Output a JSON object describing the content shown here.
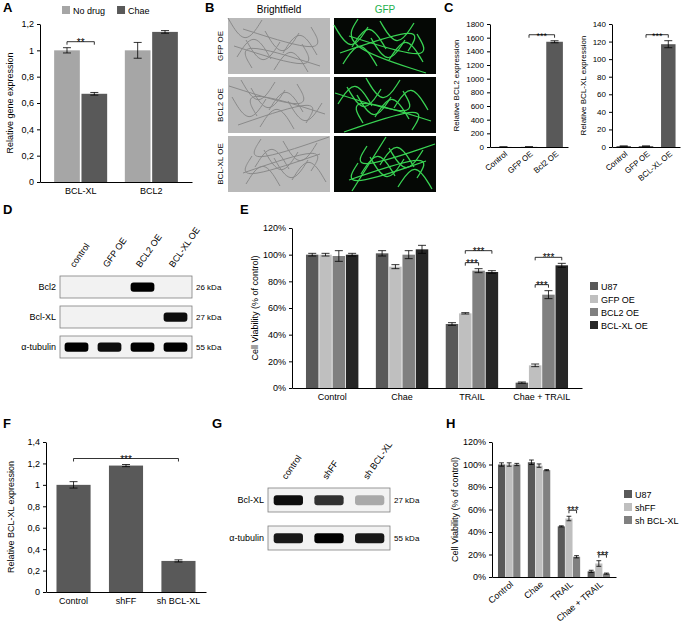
{
  "chart_data": [
    {
      "type": "bar",
      "ylabel": "Relative gene expression",
      "legend": "top",
      "categories": [
        "BCL-XL",
        "BCL2"
      ],
      "series": [
        {
          "name": "No drug",
          "color": "#a6a6a6",
          "values": [
            1.0,
            1.0
          ],
          "errors": [
            0.02,
            0.06
          ]
        },
        {
          "name": "Chae",
          "color": "#595959",
          "values": [
            0.67,
            1.14
          ],
          "errors": [
            0.01,
            0.01
          ]
        }
      ],
      "ylim": [
        0,
        1.2
      ],
      "yticks": [
        0,
        {
          "value": 0.2,
          "label": "0,2"
        },
        {
          "value": 0.4,
          "label": "0,4"
        },
        {
          "value": 0.6,
          "label": "0,6"
        },
        {
          "value": 0.8,
          "label": "0,8"
        },
        1,
        {
          "value": 1.2,
          "label": "1,2"
        }
      ],
      "significance": [
        {
          "label": "**",
          "category": 0,
          "series": [
            0,
            1
          ]
        }
      ]
    },
    {
      "type": "bar",
      "ylabel": "Relative BCL2 expression",
      "categories": [
        "Control",
        "GFP OE",
        "Bcl2 OE"
      ],
      "values": [
        1,
        2,
        1540
      ],
      "errors": [
        0,
        0,
        15
      ],
      "color": "#595959",
      "ylim": [
        0,
        1800
      ],
      "yticks": [
        0,
        200,
        400,
        600,
        800,
        1000,
        1200,
        1400,
        1600,
        1800
      ],
      "significance": [
        {
          "label": "***",
          "categories": [
            1,
            2
          ]
        }
      ]
    },
    {
      "type": "bar",
      "ylabel": "Relative BCL-XL expression",
      "categories": [
        "Control",
        "GFP OE",
        "BCL-XL OE"
      ],
      "values": [
        1,
        1,
        117
      ],
      "errors": [
        0,
        0,
        4
      ],
      "color": "#595959",
      "ylim": [
        0,
        140
      ],
      "yticks": [
        0,
        20,
        40,
        60,
        80,
        100,
        120,
        140
      ],
      "significance": [
        {
          "label": "***",
          "categories": [
            1,
            2
          ]
        }
      ]
    },
    {
      "type": "bar",
      "ylabel": "Cell Viability (% of control)",
      "legend": "right",
      "categories": [
        "Control",
        "Chae",
        "TRAIL",
        "Chae + TRAIL"
      ],
      "series": [
        {
          "name": "U87",
          "color": "#595959",
          "values": [
            100,
            101,
            48,
            4
          ],
          "errors": [
            1,
            2,
            1,
            0.5
          ]
        },
        {
          "name": "GFP OE",
          "color": "#bfbfbf",
          "values": [
            100,
            91,
            56,
            17
          ],
          "errors": [
            1,
            1.5,
            0.5,
            1
          ]
        },
        {
          "name": "BCL2 OE",
          "color": "#808080",
          "values": [
            99,
            100,
            88,
            70
          ],
          "errors": [
            4,
            3,
            1.5,
            3
          ]
        },
        {
          "name": "BCL-XL OE",
          "color": "#262626",
          "values": [
            100,
            104,
            87,
            92
          ],
          "errors": [
            1,
            3,
            1,
            1.5
          ]
        }
      ],
      "ylim": [
        0,
        120
      ],
      "yticks": [
        {
          "value": 0,
          "label": "0%"
        },
        {
          "value": 20,
          "label": "20%"
        },
        {
          "value": 40,
          "label": "40%"
        },
        {
          "value": 60,
          "label": "60%"
        },
        {
          "value": 80,
          "label": "80%"
        },
        {
          "value": 100,
          "label": "100%"
        },
        {
          "value": 120,
          "label": "120%"
        }
      ],
      "significance": [
        {
          "label": "***",
          "category": 2,
          "series": [
            1,
            2
          ]
        },
        {
          "label": "***",
          "category": 2,
          "series": [
            1,
            3
          ]
        },
        {
          "label": "***",
          "category": 3,
          "series": [
            1,
            2
          ]
        },
        {
          "label": "***",
          "category": 3,
          "series": [
            1,
            3
          ]
        }
      ]
    },
    {
      "type": "bar",
      "ylabel": "Relative BCL-XL expression",
      "categories": [
        "Control",
        "shFF",
        "sh BCL-XL"
      ],
      "values": [
        1.0,
        1.18,
        0.29
      ],
      "errors": [
        0.03,
        0.01,
        0.01
      ],
      "color": "#595959",
      "ylim": [
        0,
        1.4
      ],
      "yticks": [
        0,
        {
          "value": 0.2,
          "label": "0,2"
        },
        {
          "value": 0.4,
          "label": "0,4"
        },
        {
          "value": 0.6,
          "label": "0,6"
        },
        {
          "value": 0.8,
          "label": "0,8"
        },
        1,
        {
          "value": 1.2,
          "label": "1,2"
        },
        {
          "value": 1.4,
          "label": "1,4"
        }
      ],
      "significance": [
        {
          "label": "***",
          "categories": [
            0,
            2
          ]
        }
      ]
    },
    {
      "type": "bar",
      "ylabel": "Cell Viability (% of control)",
      "legend": "right",
      "categories": [
        "Control",
        "Chae",
        "TRAIL",
        "Chae + TRAIL"
      ],
      "series": [
        {
          "name": "U87",
          "color": "#595959",
          "values": [
            100,
            102,
            45,
            5
          ],
          "errors": [
            1.5,
            2,
            0.5,
            1
          ]
        },
        {
          "name": "shFF",
          "color": "#bfbfbf",
          "values": [
            100,
            99,
            52,
            12
          ],
          "errors": [
            1.5,
            1.5,
            2,
            2.5
          ]
        },
        {
          "name": "sh BCL-XL",
          "color": "#808080",
          "values": [
            100,
            95,
            18,
            3
          ],
          "errors": [
            1,
            0.5,
            1,
            0.5
          ]
        }
      ],
      "ylim": [
        0,
        120
      ],
      "yticks": [
        {
          "value": 0,
          "label": "0%"
        },
        {
          "value": 20,
          "label": "20%"
        },
        {
          "value": 40,
          "label": "40%"
        },
        {
          "value": 60,
          "label": "60%"
        },
        {
          "value": 80,
          "label": "80%"
        },
        {
          "value": 100,
          "label": "100%"
        },
        {
          "value": 120,
          "label": "120%"
        }
      ],
      "significance": [
        {
          "label": "***",
          "category": 2,
          "series": [
            1,
            2
          ]
        },
        {
          "label": "***",
          "category": 3,
          "series": [
            1,
            2
          ]
        }
      ]
    }
  ],
  "panel_letters": [
    "A",
    "B",
    "C",
    "D",
    "E",
    "F",
    "G",
    "H"
  ],
  "micrographs": {
    "columns": [
      "Brightfield",
      "GFP"
    ],
    "rows": [
      "GFP OE",
      "BCL2 OE",
      "BCL-XL OE"
    ]
  },
  "blots": [
    {
      "lanes": [
        "control",
        "GFP OE",
        "BCL2 OE",
        "BCL-XL OE"
      ],
      "rows": [
        {
          "name": "Bcl2",
          "size": "26 kDa",
          "intensity": [
            0,
            0,
            1,
            0
          ]
        },
        {
          "name": "Bcl-XL",
          "size": "27 kDa",
          "intensity": [
            0,
            0,
            0,
            0.95
          ]
        },
        {
          "name": "α-tubulin",
          "size": "55 kDa",
          "intensity": [
            1,
            0.95,
            1,
            1
          ]
        }
      ]
    },
    {
      "lanes": [
        "control",
        "shFF",
        "sh BCL-XL"
      ],
      "rows": [
        {
          "name": "Bcl-XL",
          "size": "27 kDa",
          "intensity": [
            0.95,
            0.8,
            0.3
          ]
        },
        {
          "name": "α-tubulin",
          "size": "55 kDa",
          "intensity": [
            0.9,
            1,
            0.9
          ]
        }
      ]
    }
  ]
}
